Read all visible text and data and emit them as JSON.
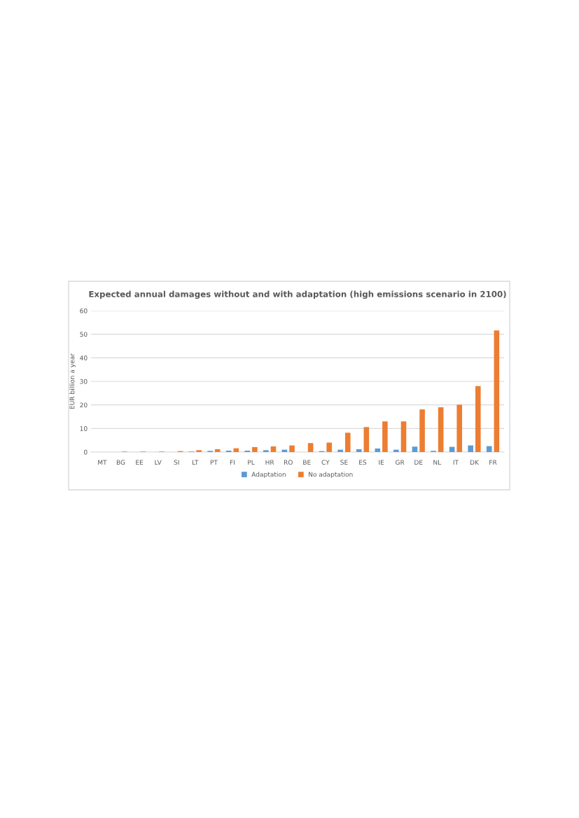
{
  "chart_data": {
    "type": "bar",
    "title": "Expected annual damages without and with adaptation (high emissions scenario in 2100)",
    "ylabel": "EUR billion a year",
    "categories": [
      "MT",
      "BG",
      "EE",
      "LV",
      "SI",
      "LT",
      "PT",
      "FI",
      "PL",
      "HR",
      "RO",
      "BE",
      "CY",
      "SE",
      "ES",
      "IE",
      "GR",
      "DE",
      "NL",
      "IT",
      "DK",
      "FR"
    ],
    "series": [
      {
        "name": "Adaptation",
        "color": "#5b9bd5",
        "values": [
          0,
          0,
          0,
          0,
          0,
          0.2,
          0.5,
          0.6,
          0.6,
          0.8,
          1.0,
          0,
          0.4,
          1.0,
          1.2,
          1.5,
          1.0,
          2.3,
          0.5,
          2.2,
          2.8,
          2.5
        ]
      },
      {
        "name": "No adaptation",
        "color": "#ed7d31",
        "values": [
          0,
          0.2,
          0.2,
          0.2,
          0.4,
          0.8,
          1.2,
          1.6,
          2.1,
          2.4,
          2.8,
          3.8,
          4.0,
          8.2,
          10.6,
          13.0,
          13.0,
          18.1,
          19.0,
          20.1,
          28.0,
          51.6
        ]
      }
    ],
    "ylim": [
      0,
      60
    ],
    "yticks": [
      0,
      10,
      20,
      30,
      40,
      50,
      60
    ],
    "grid": "y",
    "legend": "bottom"
  }
}
